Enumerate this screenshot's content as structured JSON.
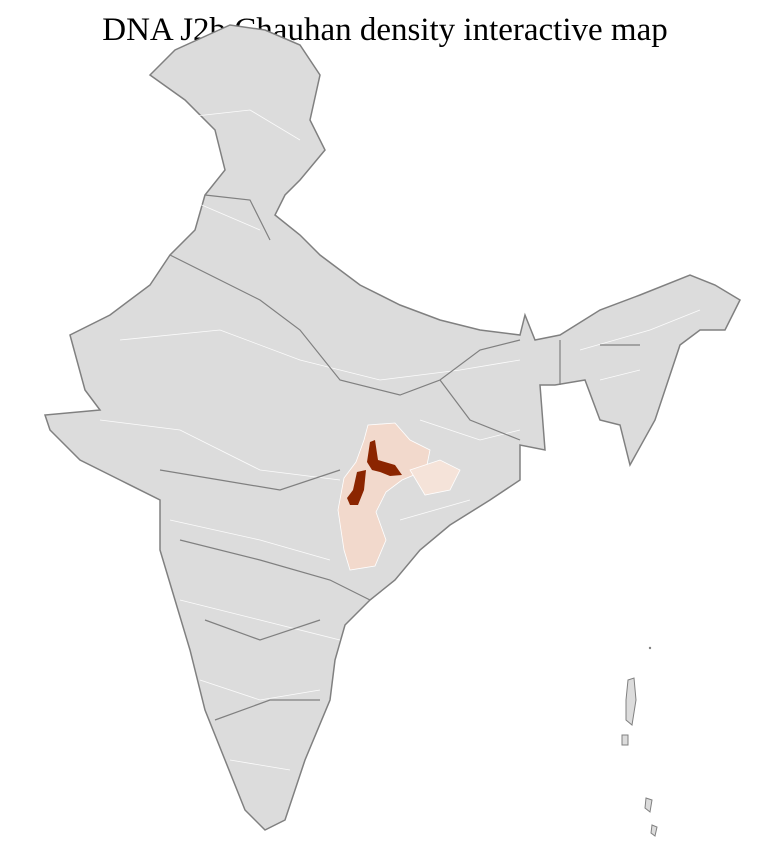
{
  "title": "DNA J2b Chauhan density interactive map",
  "map": {
    "region": "India districts",
    "colors": {
      "base_fill": "#dcdcdc",
      "district_border": "#ffffff",
      "state_border": "#808080",
      "low_density": "#f2d9cc",
      "high_density": "#8b2500"
    }
  }
}
